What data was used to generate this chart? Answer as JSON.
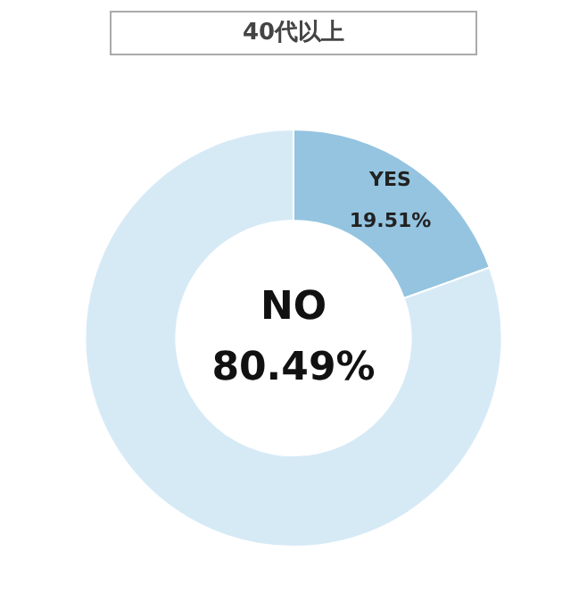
{
  "chart_data": {
    "type": "donut",
    "title": "40代以上",
    "categories": [
      "YES",
      "NO"
    ],
    "values": [
      19.51,
      80.49
    ],
    "colors": [
      "#94c4e0",
      "#d6eaf6"
    ],
    "value_labels": [
      "19.51%",
      "80.49%"
    ],
    "legend": false
  }
}
